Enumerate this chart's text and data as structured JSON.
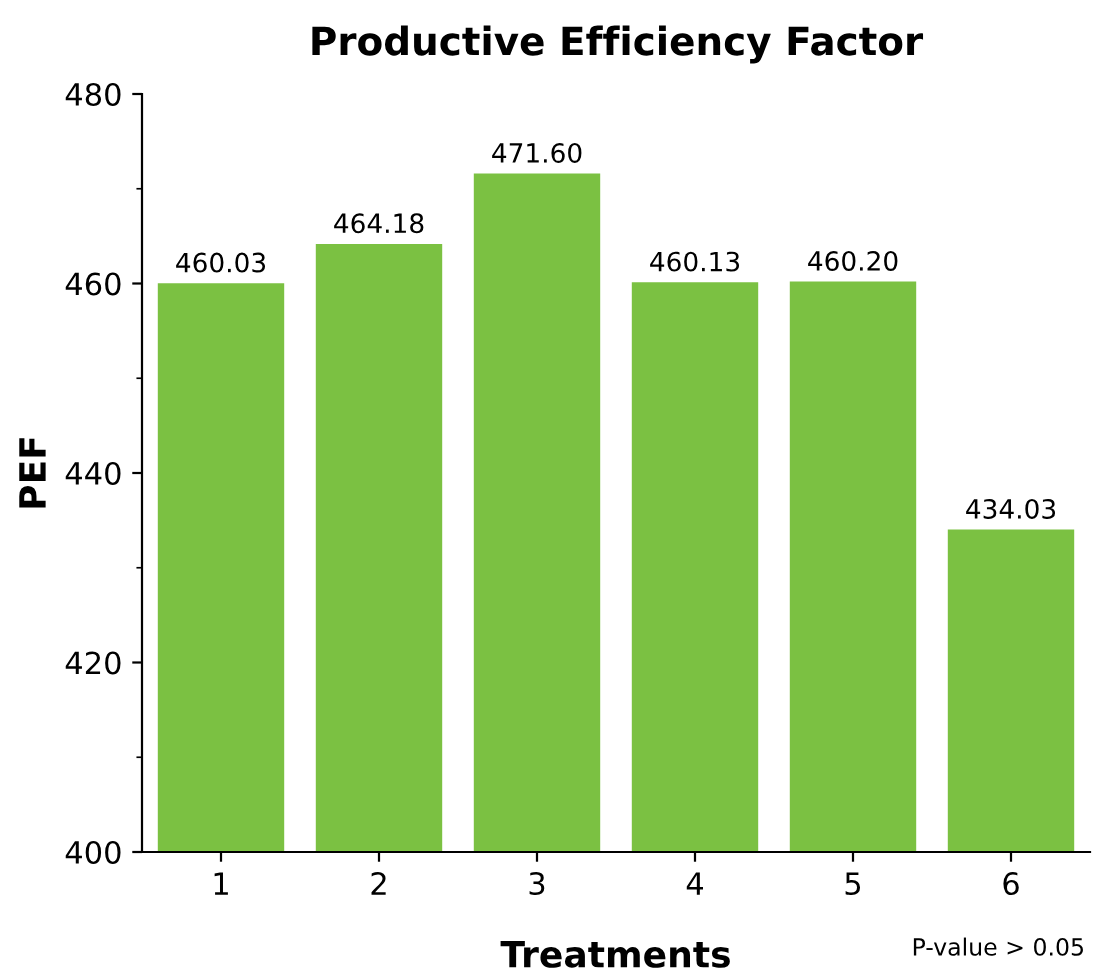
{
  "chart_data": {
    "type": "bar",
    "title": "Productive Efficiency Factor",
    "xlabel": "Treatments",
    "ylabel": "PEF",
    "categories": [
      "1",
      "2",
      "3",
      "4",
      "5",
      "6"
    ],
    "values": [
      460.03,
      464.18,
      471.6,
      460.13,
      460.2,
      434.03
    ],
    "value_labels": [
      "460.03",
      "464.18",
      "471.60",
      "460.13",
      "460.20",
      "434.03"
    ],
    "color": "#7bc142",
    "ylim": [
      400,
      480
    ],
    "yticks": [
      400,
      420,
      440,
      460,
      480
    ],
    "grid": false,
    "legend": false,
    "annotations": [
      "P-value > 0.05"
    ]
  }
}
